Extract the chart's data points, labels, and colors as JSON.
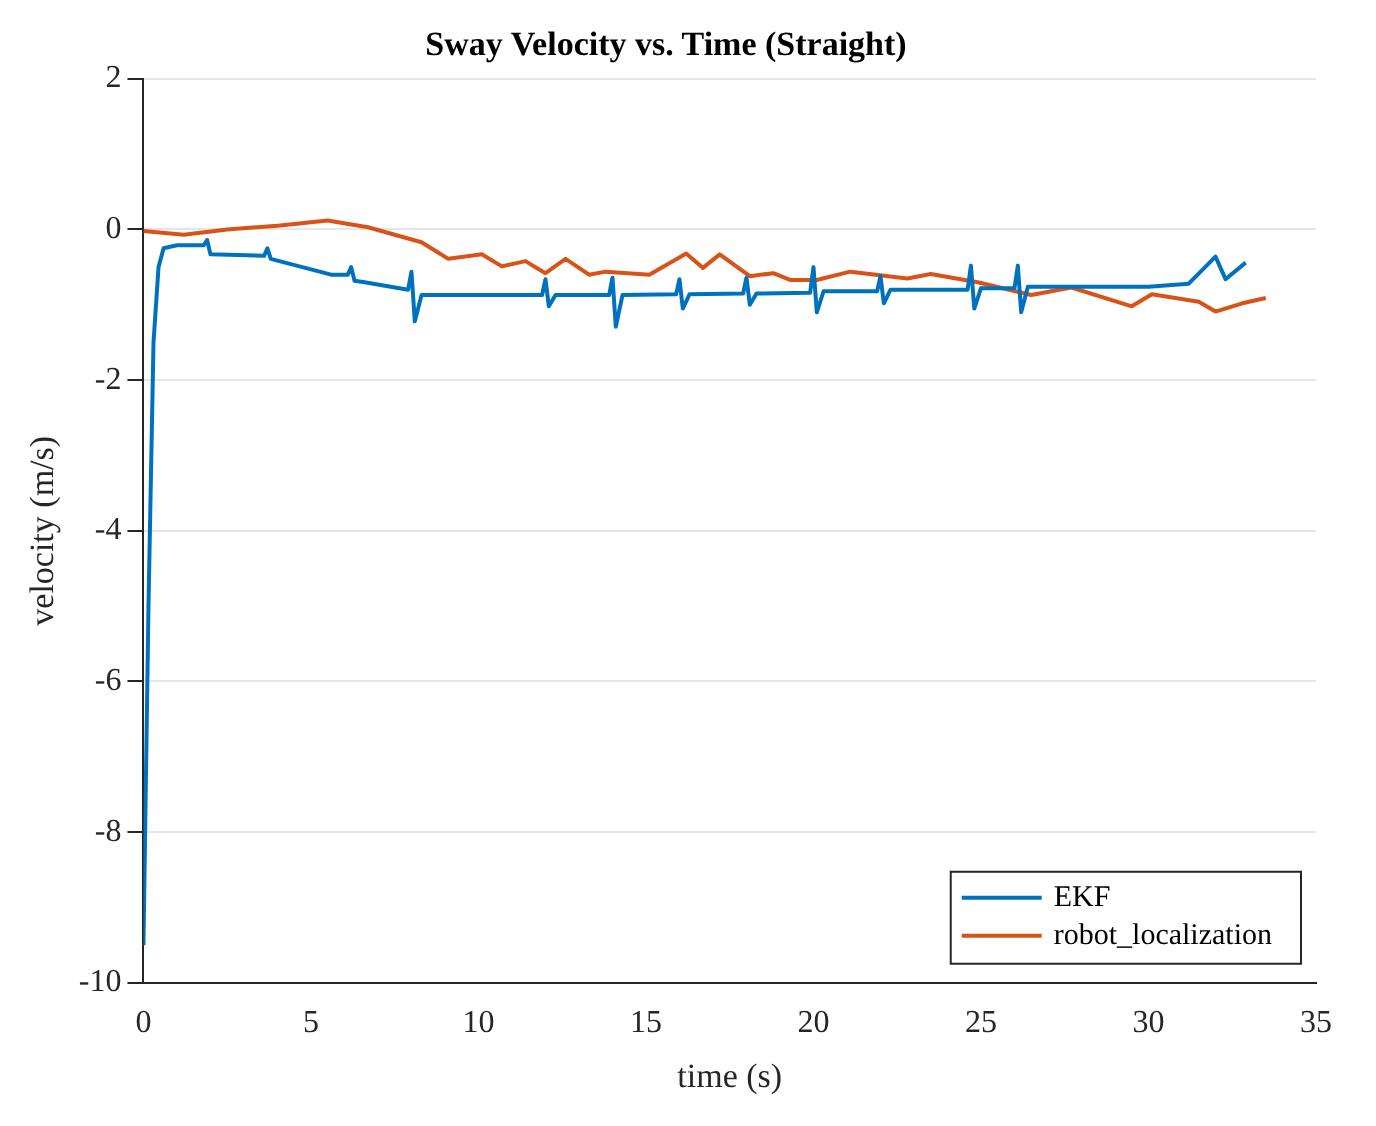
{
  "chart_data": {
    "type": "line",
    "title": "Sway Velocity vs. Time (Straight)",
    "xlabel": "time (s)",
    "ylabel": "velocity (m/s)",
    "xlim": [
      0,
      35
    ],
    "ylim": [
      -10,
      2
    ],
    "xticks": [
      0,
      5,
      10,
      15,
      20,
      25,
      30,
      35
    ],
    "yticks": [
      -10,
      -8,
      -6,
      -4,
      -2,
      0,
      2
    ],
    "grid": "y",
    "legend": "bottom right",
    "line_style": "solid",
    "marker": "none",
    "series": [
      {
        "name": "EKF",
        "color": "#0072bd",
        "x": [
          0,
          0.15,
          0.3,
          0.45,
          0.6,
          1.0,
          1.8,
          1.9,
          2.0,
          3.6,
          3.7,
          3.8,
          5.6,
          6.1,
          6.2,
          6.3,
          6.6,
          7.9,
          8.0,
          8.1,
          8.3,
          10,
          11.9,
          12.0,
          12.1,
          12.3,
          13.9,
          14.0,
          14.1,
          14.3,
          15.9,
          16.0,
          16.1,
          16.3,
          17.9,
          18.0,
          18.1,
          18.3,
          19.9,
          20.0,
          20.1,
          20.3,
          21.9,
          22.0,
          22.1,
          22.3,
          24.6,
          24.7,
          24.8,
          25.0,
          26.0,
          26.1,
          26.2,
          26.4,
          30,
          31.2,
          32.0,
          32.3,
          32.9
        ],
        "values": [
          -9.5,
          -5,
          -1.5,
          -0.5,
          -0.25,
          -0.21,
          -0.21,
          -0.14,
          -0.33,
          -0.35,
          -0.25,
          -0.39,
          -0.6,
          -0.6,
          -0.5,
          -0.68,
          -0.7,
          -0.8,
          -0.56,
          -1.22,
          -0.87,
          -0.87,
          -0.87,
          -0.66,
          -1.02,
          -0.87,
          -0.87,
          -0.64,
          -1.29,
          -0.87,
          -0.86,
          -0.66,
          -1.05,
          -0.86,
          -0.85,
          -0.64,
          -1.0,
          -0.85,
          -0.84,
          -0.5,
          -1.1,
          -0.82,
          -0.82,
          -0.62,
          -0.98,
          -0.8,
          -0.8,
          -0.48,
          -1.05,
          -0.78,
          -0.78,
          -0.48,
          -1.1,
          -0.76,
          -0.76,
          -0.72,
          -0.36,
          -0.66,
          -0.44
        ]
      },
      {
        "name": "robot_localization",
        "color": "#d95319",
        "x": [
          0,
          1.2,
          2.5,
          4,
          5.5,
          6.7,
          8.3,
          9.1,
          10.1,
          10.7,
          11.4,
          12.0,
          12.6,
          13.3,
          13.8,
          15.1,
          16.2,
          16.7,
          17.2,
          18.1,
          18.8,
          19.3,
          20.1,
          21.1,
          22.8,
          23.5,
          24.9,
          26.5,
          27.7,
          29.5,
          30.1,
          31.5,
          32.0,
          32.8,
          33.5
        ],
        "values": [
          -0.02,
          -0.07,
          0,
          0.05,
          0.12,
          0.03,
          -0.17,
          -0.39,
          -0.33,
          -0.49,
          -0.42,
          -0.58,
          -0.39,
          -0.6,
          -0.56,
          -0.6,
          -0.32,
          -0.51,
          -0.33,
          -0.62,
          -0.58,
          -0.67,
          -0.67,
          -0.56,
          -0.65,
          -0.59,
          -0.7,
          -0.87,
          -0.77,
          -1.02,
          -0.86,
          -0.96,
          -1.09,
          -0.98,
          -0.91
        ]
      }
    ]
  }
}
